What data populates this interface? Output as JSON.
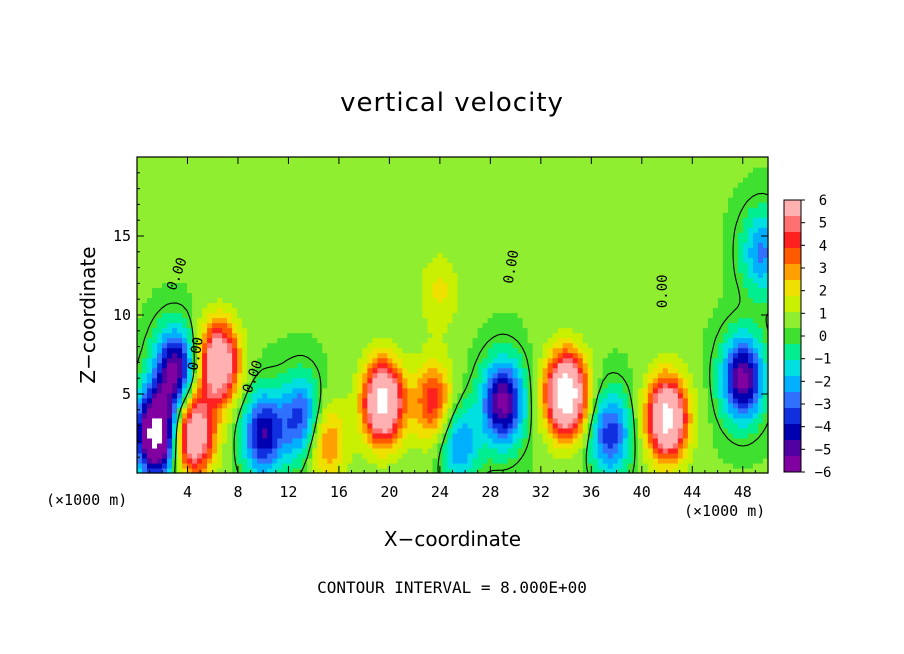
{
  "chart_data": {
    "type": "heatmap",
    "title": "vertical velocity",
    "xlabel": "X−coordinate",
    "ylabel": "Z−coordinate",
    "x_unit_label": "(×1000 m)",
    "footer": "CONTOUR INTERVAL = 8.000E+00",
    "xlim": [
      0,
      50
    ],
    "ylim": [
      0,
      20
    ],
    "x_ticks": [
      4,
      8,
      12,
      16,
      20,
      24,
      28,
      32,
      36,
      40,
      44,
      48
    ],
    "y_ticks": [
      5,
      10,
      15
    ],
    "colorbar": {
      "range": [
        -6,
        6
      ],
      "labels": [
        "6",
        "5",
        "4",
        "3",
        "2",
        "1",
        "0",
        "−1",
        "−2",
        "−3",
        "−4",
        "−5",
        "−6"
      ],
      "colors": [
        "#ffb0b0",
        "#ff7070",
        "#ff2020",
        "#ff5a00",
        "#ffa000",
        "#f0e000",
        "#c8f000",
        "#90ee30",
        "#40e030",
        "#00ee90",
        "#00e0e0",
        "#00b0ff",
        "#3070ff",
        "#1030e0",
        "#0000b0",
        "#5000a0",
        "#8000a0"
      ]
    },
    "contour_labels": [
      "0.00",
      "0.00",
      "0.00",
      "0.00",
      "0.00"
    ],
    "features": [
      {
        "x": 1.5,
        "z": 2.5,
        "w": -9
      },
      {
        "x": 3.0,
        "z": 6.5,
        "w": -6
      },
      {
        "x": 4.5,
        "z": 2.5,
        "w": 7
      },
      {
        "x": 6.5,
        "z": 7.0,
        "w": 7
      },
      {
        "x": 10.0,
        "z": 2.5,
        "w": -5
      },
      {
        "x": 13.0,
        "z": 3.5,
        "w": -4
      },
      {
        "x": 15.0,
        "z": 2.0,
        "w": 3
      },
      {
        "x": 19.5,
        "z": 4.5,
        "w": 8
      },
      {
        "x": 23.5,
        "z": 4.5,
        "w": 4
      },
      {
        "x": 25.5,
        "z": 2.0,
        "w": -3
      },
      {
        "x": 29.0,
        "z": 4.5,
        "w": -6
      },
      {
        "x": 34.0,
        "z": 5.0,
        "w": 9
      },
      {
        "x": 37.5,
        "z": 2.5,
        "w": -4
      },
      {
        "x": 42.0,
        "z": 3.5,
        "w": 8
      },
      {
        "x": 48.0,
        "z": 6.0,
        "w": -6
      },
      {
        "x": 49.5,
        "z": 14.0,
        "w": -3
      },
      {
        "x": 24.0,
        "z": 11.5,
        "w": 1.5
      }
    ]
  }
}
